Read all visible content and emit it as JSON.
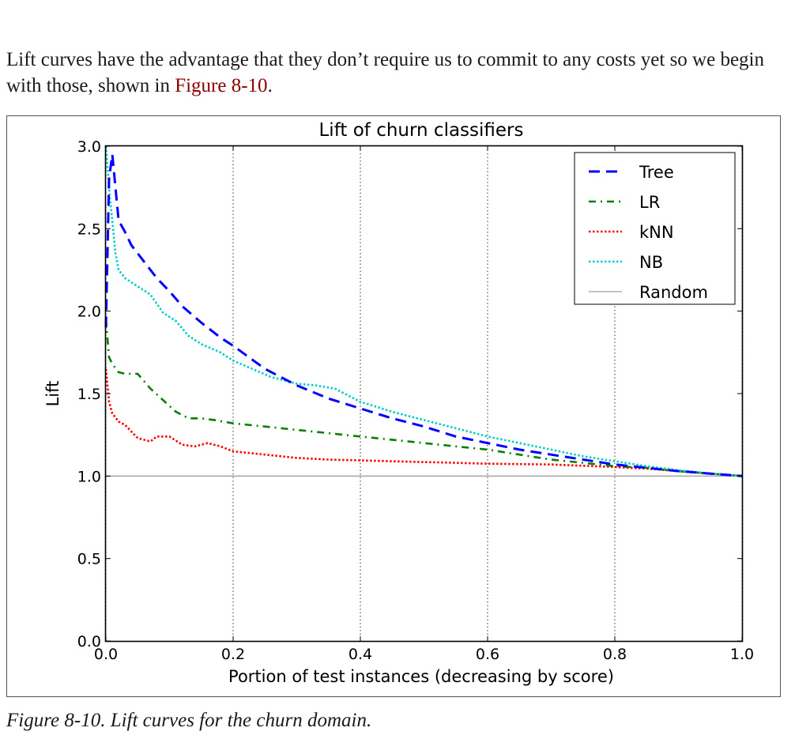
{
  "paragraph": {
    "text": "Lift curves have the advantage that they don’t require us to commit to any costs yet so we begin with those, shown in ",
    "link": "Figure 8-10",
    "end": "."
  },
  "caption": "Figure 8-10. Lift curves for the churn domain.",
  "chart_data": {
    "type": "line",
    "title": "Lift of churn classifiers",
    "xlabel": "Portion of test instances (decreasing by score)",
    "ylabel": "Lift",
    "xlim": [
      0.0,
      1.0
    ],
    "ylim": [
      0.0,
      3.0
    ],
    "xticks": [
      "0.0",
      "0.2",
      "0.4",
      "0.6",
      "0.8",
      "1.0"
    ],
    "yticks": [
      "0.0",
      "0.5",
      "1.0",
      "1.5",
      "2.0",
      "2.5",
      "3.0"
    ],
    "grid": "vertical dotted",
    "legend_position": "top-right",
    "series": [
      {
        "name": "Tree",
        "color": "#0000ff",
        "dash": "dashed",
        "points": [
          [
            0.0,
            1.9
          ],
          [
            0.005,
            2.8
          ],
          [
            0.01,
            2.95
          ],
          [
            0.015,
            2.75
          ],
          [
            0.02,
            2.55
          ],
          [
            0.03,
            2.48
          ],
          [
            0.04,
            2.4
          ],
          [
            0.06,
            2.3
          ],
          [
            0.08,
            2.2
          ],
          [
            0.1,
            2.12
          ],
          [
            0.12,
            2.03
          ],
          [
            0.15,
            1.93
          ],
          [
            0.18,
            1.84
          ],
          [
            0.2,
            1.79
          ],
          [
            0.25,
            1.65
          ],
          [
            0.28,
            1.59
          ],
          [
            0.3,
            1.55
          ],
          [
            0.35,
            1.47
          ],
          [
            0.4,
            1.41
          ],
          [
            0.45,
            1.35
          ],
          [
            0.5,
            1.3
          ],
          [
            0.55,
            1.24
          ],
          [
            0.6,
            1.2
          ],
          [
            0.65,
            1.16
          ],
          [
            0.7,
            1.13
          ],
          [
            0.75,
            1.1
          ],
          [
            0.8,
            1.07
          ],
          [
            0.85,
            1.05
          ],
          [
            0.9,
            1.03
          ],
          [
            0.95,
            1.015
          ],
          [
            1.0,
            1.0
          ]
        ]
      },
      {
        "name": "LR",
        "color": "#008000",
        "dash": "dashdot",
        "points": [
          [
            0.0,
            1.95
          ],
          [
            0.005,
            1.72
          ],
          [
            0.01,
            1.68
          ],
          [
            0.02,
            1.63
          ],
          [
            0.03,
            1.62
          ],
          [
            0.05,
            1.62
          ],
          [
            0.07,
            1.53
          ],
          [
            0.09,
            1.46
          ],
          [
            0.11,
            1.39
          ],
          [
            0.13,
            1.35
          ],
          [
            0.15,
            1.35
          ],
          [
            0.17,
            1.34
          ],
          [
            0.2,
            1.32
          ],
          [
            0.25,
            1.3
          ],
          [
            0.3,
            1.28
          ],
          [
            0.35,
            1.26
          ],
          [
            0.4,
            1.24
          ],
          [
            0.45,
            1.22
          ],
          [
            0.5,
            1.2
          ],
          [
            0.55,
            1.18
          ],
          [
            0.6,
            1.16
          ],
          [
            0.65,
            1.13
          ],
          [
            0.7,
            1.1
          ],
          [
            0.75,
            1.08
          ],
          [
            0.8,
            1.06
          ],
          [
            0.85,
            1.05
          ],
          [
            0.9,
            1.03
          ],
          [
            0.95,
            1.015
          ],
          [
            1.0,
            1.0
          ]
        ]
      },
      {
        "name": "kNN",
        "color": "#ff0000",
        "dash": "dotted",
        "points": [
          [
            0.0,
            1.65
          ],
          [
            0.005,
            1.45
          ],
          [
            0.01,
            1.38
          ],
          [
            0.02,
            1.33
          ],
          [
            0.03,
            1.31
          ],
          [
            0.04,
            1.27
          ],
          [
            0.05,
            1.23
          ],
          [
            0.06,
            1.22
          ],
          [
            0.07,
            1.21
          ],
          [
            0.08,
            1.24
          ],
          [
            0.1,
            1.24
          ],
          [
            0.12,
            1.19
          ],
          [
            0.14,
            1.18
          ],
          [
            0.16,
            1.2
          ],
          [
            0.18,
            1.18
          ],
          [
            0.2,
            1.15
          ],
          [
            0.25,
            1.13
          ],
          [
            0.3,
            1.11
          ],
          [
            0.35,
            1.1
          ],
          [
            0.4,
            1.095
          ],
          [
            0.45,
            1.09
          ],
          [
            0.5,
            1.085
          ],
          [
            0.55,
            1.08
          ],
          [
            0.6,
            1.075
          ],
          [
            0.7,
            1.07
          ],
          [
            0.8,
            1.055
          ],
          [
            0.85,
            1.045
          ],
          [
            0.9,
            1.03
          ],
          [
            0.95,
            1.015
          ],
          [
            1.0,
            1.0
          ]
        ]
      },
      {
        "name": "NB",
        "color": "#00cccc",
        "dash": "dotted",
        "points": [
          [
            0.0,
            3.0
          ],
          [
            0.003,
            2.85
          ],
          [
            0.006,
            2.7
          ],
          [
            0.01,
            2.55
          ],
          [
            0.015,
            2.35
          ],
          [
            0.02,
            2.25
          ],
          [
            0.03,
            2.2
          ],
          [
            0.05,
            2.15
          ],
          [
            0.07,
            2.1
          ],
          [
            0.09,
            1.99
          ],
          [
            0.11,
            1.94
          ],
          [
            0.13,
            1.85
          ],
          [
            0.15,
            1.8
          ],
          [
            0.18,
            1.75
          ],
          [
            0.2,
            1.7
          ],
          [
            0.23,
            1.65
          ],
          [
            0.26,
            1.6
          ],
          [
            0.3,
            1.56
          ],
          [
            0.33,
            1.55
          ],
          [
            0.36,
            1.53
          ],
          [
            0.4,
            1.45
          ],
          [
            0.45,
            1.39
          ],
          [
            0.5,
            1.34
          ],
          [
            0.55,
            1.29
          ],
          [
            0.6,
            1.24
          ],
          [
            0.65,
            1.2
          ],
          [
            0.7,
            1.16
          ],
          [
            0.75,
            1.12
          ],
          [
            0.8,
            1.09
          ],
          [
            0.85,
            1.06
          ],
          [
            0.9,
            1.035
          ],
          [
            0.95,
            1.015
          ],
          [
            1.0,
            1.0
          ]
        ]
      },
      {
        "name": "Random",
        "color": "#a0a0a0",
        "dash": "solid",
        "points": [
          [
            0.0,
            1.0
          ],
          [
            1.0,
            1.0
          ]
        ]
      }
    ]
  }
}
